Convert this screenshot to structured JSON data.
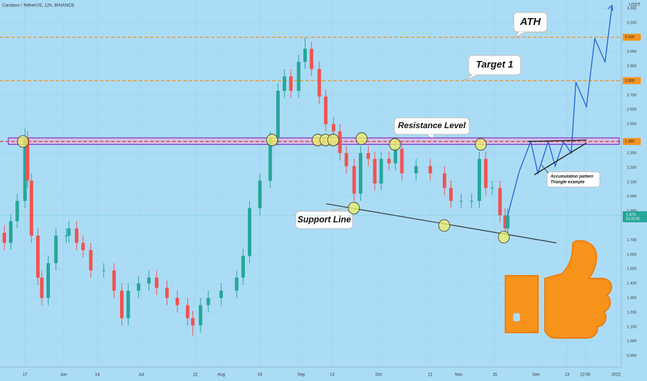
{
  "chart_data": {
    "type": "candlestick",
    "title": "Cardano / TetherUS, 12h, BINANCE",
    "y_unit": "USDT",
    "xlim": [
      -9.68,
      231
    ],
    "ylim": [
      0.822,
      3.357
    ],
    "xticks": [
      {
        "value": 0,
        "label": "17"
      },
      {
        "value": 15,
        "label": "Jun"
      },
      {
        "value": 28,
        "label": "14"
      },
      {
        "value": 45,
        "label": "Jul"
      },
      {
        "value": 66,
        "label": "22"
      },
      {
        "value": 76,
        "label": "Aug"
      },
      {
        "value": 91,
        "label": "16"
      },
      {
        "value": 107,
        "label": "Sep"
      },
      {
        "value": 119,
        "label": "13"
      },
      {
        "value": 137,
        "label": "Oct"
      },
      {
        "value": 157,
        "label": "21"
      },
      {
        "value": 168,
        "label": "Nov"
      },
      {
        "value": 182,
        "label": "15"
      },
      {
        "value": 198,
        "label": "Dec"
      },
      {
        "value": 210,
        "label": "13"
      },
      {
        "value": 217,
        "label": "12:00"
      },
      {
        "value": 229,
        "label": "2022"
      }
    ],
    "yticks": [
      {
        "value": 3.3,
        "label": "3.300"
      },
      {
        "value": 3.2,
        "label": "3.200"
      },
      {
        "value": 3.0,
        "label": "3.000"
      },
      {
        "value": 2.9,
        "label": "2.900"
      },
      {
        "value": 2.7,
        "label": "2.700"
      },
      {
        "value": 2.6,
        "label": "2.600"
      },
      {
        "value": 2.5,
        "label": "2.500"
      },
      {
        "value": 2.3,
        "label": "2.300"
      },
      {
        "value": 2.2,
        "label": "2.200"
      },
      {
        "value": 2.1,
        "label": "2.100"
      },
      {
        "value": 2.0,
        "label": "2.000"
      },
      {
        "value": 1.9,
        "label": "1.900"
      },
      {
        "value": 1.7,
        "label": "1.700"
      },
      {
        "value": 1.6,
        "label": "1.600"
      },
      {
        "value": 1.5,
        "label": "1.500"
      },
      {
        "value": 1.4,
        "label": "1.400"
      },
      {
        "value": 1.3,
        "label": "1.300"
      },
      {
        "value": 1.2,
        "label": "1.200"
      },
      {
        "value": 1.1,
        "label": "1.100"
      },
      {
        "value": 1.0,
        "label": "1.000"
      },
      {
        "value": 0.9,
        "label": "0.900"
      }
    ],
    "up_color": "#26a69a",
    "down_color": "#ef5350",
    "x": [
      -8,
      -5.5,
      -3,
      0,
      1,
      2.5,
      5,
      6.5,
      9,
      12,
      16,
      17,
      20,
      22.5,
      25.5,
      30.5,
      34.5,
      37.5,
      40,
      44,
      48,
      51,
      55,
      59,
      63,
      65,
      68,
      71,
      76,
      82,
      84.5,
      87,
      91,
      95,
      98,
      100.5,
      103,
      106,
      108.5,
      111,
      114,
      116.5,
      119.5,
      122,
      124.5,
      127.5,
      130,
      133,
      135.5,
      138,
      141,
      143.5,
      146,
      151.5,
      157,
      162.5,
      165,
      169,
      173,
      176,
      178.5,
      181,
      184,
      186,
      187
    ],
    "open": [
      1.75,
      1.68,
      1.83,
      1.97,
      2.4,
      2.11,
      1.73,
      1.44,
      1.3,
      1.54,
      1.73,
      1.73,
      1.78,
      1.68,
      1.63,
      1.49,
      1.49,
      1.35,
      1.16,
      1.35,
      1.4,
      1.44,
      1.37,
      1.3,
      1.25,
      1.16,
      1.11,
      1.25,
      1.3,
      1.35,
      1.44,
      1.59,
      1.92,
      2.11,
      2.4,
      2.73,
      2.83,
      2.73,
      2.93,
      3.02,
      2.88,
      2.69,
      2.5,
      2.45,
      2.3,
      2.21,
      2.02,
      2.3,
      2.26,
      2.09,
      2.26,
      2.23,
      2.33,
      2.16,
      2.21,
      2.16,
      2.06,
      1.97,
      1.97,
      1.97,
      2.26,
      2.06,
      2.06,
      1.87,
      1.78
    ],
    "high": [
      1.8,
      1.88,
      2.02,
      2.47,
      2.45,
      2.16,
      1.78,
      1.49,
      1.59,
      1.78,
      1.78,
      1.83,
      1.83,
      1.73,
      1.68,
      1.54,
      1.54,
      1.4,
      1.4,
      1.45,
      1.49,
      1.49,
      1.42,
      1.35,
      1.3,
      1.21,
      1.3,
      1.35,
      1.4,
      1.49,
      1.64,
      1.97,
      2.16,
      2.45,
      2.78,
      2.88,
      2.88,
      2.98,
      3.1,
      3.07,
      2.93,
      2.74,
      2.55,
      2.5,
      2.35,
      2.26,
      2.35,
      2.35,
      2.31,
      2.31,
      2.31,
      2.38,
      2.38,
      2.26,
      2.26,
      2.21,
      2.11,
      2.02,
      2.02,
      2.31,
      2.31,
      2.11,
      2.11,
      1.92,
      1.92
    ],
    "low": [
      1.63,
      1.63,
      1.78,
      1.92,
      2.06,
      1.68,
      1.39,
      1.25,
      1.25,
      1.49,
      1.68,
      1.68,
      1.63,
      1.58,
      1.44,
      1.44,
      1.3,
      1.11,
      1.11,
      1.3,
      1.35,
      1.32,
      1.25,
      1.2,
      1.11,
      1.04,
      1.06,
      1.2,
      1.25,
      1.3,
      1.39,
      1.54,
      1.87,
      2.06,
      2.35,
      2.68,
      2.68,
      2.68,
      2.88,
      2.83,
      2.64,
      2.45,
      2.4,
      2.25,
      2.16,
      1.97,
      1.97,
      2.21,
      2.04,
      2.04,
      2.18,
      2.18,
      2.11,
      2.11,
      2.11,
      2.01,
      1.92,
      1.92,
      1.92,
      1.92,
      2.01,
      2.01,
      1.82,
      1.73,
      1.73
    ],
    "close": [
      1.68,
      1.83,
      1.97,
      2.4,
      2.11,
      1.73,
      1.44,
      1.3,
      1.54,
      1.73,
      1.73,
      1.78,
      1.68,
      1.63,
      1.49,
      1.49,
      1.35,
      1.16,
      1.35,
      1.4,
      1.44,
      1.37,
      1.3,
      1.25,
      1.16,
      1.11,
      1.25,
      1.3,
      1.35,
      1.44,
      1.59,
      1.92,
      2.11,
      2.4,
      2.73,
      2.83,
      2.73,
      2.93,
      3.02,
      2.88,
      2.69,
      2.5,
      2.45,
      2.3,
      2.21,
      2.02,
      2.3,
      2.26,
      2.09,
      2.26,
      2.23,
      2.33,
      2.16,
      2.21,
      2.16,
      2.06,
      1.97,
      1.97,
      1.97,
      2.26,
      2.06,
      2.06,
      1.87,
      1.78,
      1.87
    ],
    "projection": {
      "color": "#1e5fd6",
      "x": [
        187,
        191.4,
        195.9,
        198.7,
        202.7,
        205.4,
        208.6,
        211.6,
        213.4,
        217.5,
        220.7,
        224.7,
        227.4
      ],
      "values": [
        1.87,
        2.17,
        2.38,
        2.16,
        2.38,
        2.21,
        2.38,
        2.3,
        2.79,
        2.62,
        3.09,
        2.93,
        3.32
      ]
    },
    "levels": [
      {
        "value": 3.1,
        "label": "3.100"
      },
      {
        "value": 2.8,
        "label": "2.800"
      },
      {
        "value": 2.38,
        "label": "2.380"
      }
    ],
    "level_color": "#f7931a",
    "resistance_band": [
      2.36,
      2.405
    ],
    "current_price": {
      "value": 1.87,
      "label": "1.870",
      "countdown": "01:31:00"
    },
    "support_line": {
      "x": [
        116.7,
        205.9
      ],
      "values": [
        1.95,
        1.68
      ]
    },
    "triangle_upper": {
      "x": [
        194.6,
        217.5
      ],
      "values": [
        2.38,
        2.39
      ]
    },
    "triangle_lower": {
      "x": [
        197.3,
        217.5
      ],
      "values": [
        2.15,
        2.37
      ]
    },
    "touches": {
      "x": [
        -0.8,
        95.7,
        113.4,
        116.4,
        119.4,
        130.4,
        143.3,
        176.6,
        127.4,
        162.4,
        185.5
      ],
      "values": [
        2.38,
        2.39,
        2.39,
        2.39,
        2.39,
        2.4,
        2.36,
        2.36,
        1.92,
        1.8,
        1.72
      ]
    },
    "annotations": [
      "ATH",
      "Target 1",
      "Resistance Level",
      "Support Line",
      "Accumulation pattern",
      "Triangle example"
    ]
  }
}
